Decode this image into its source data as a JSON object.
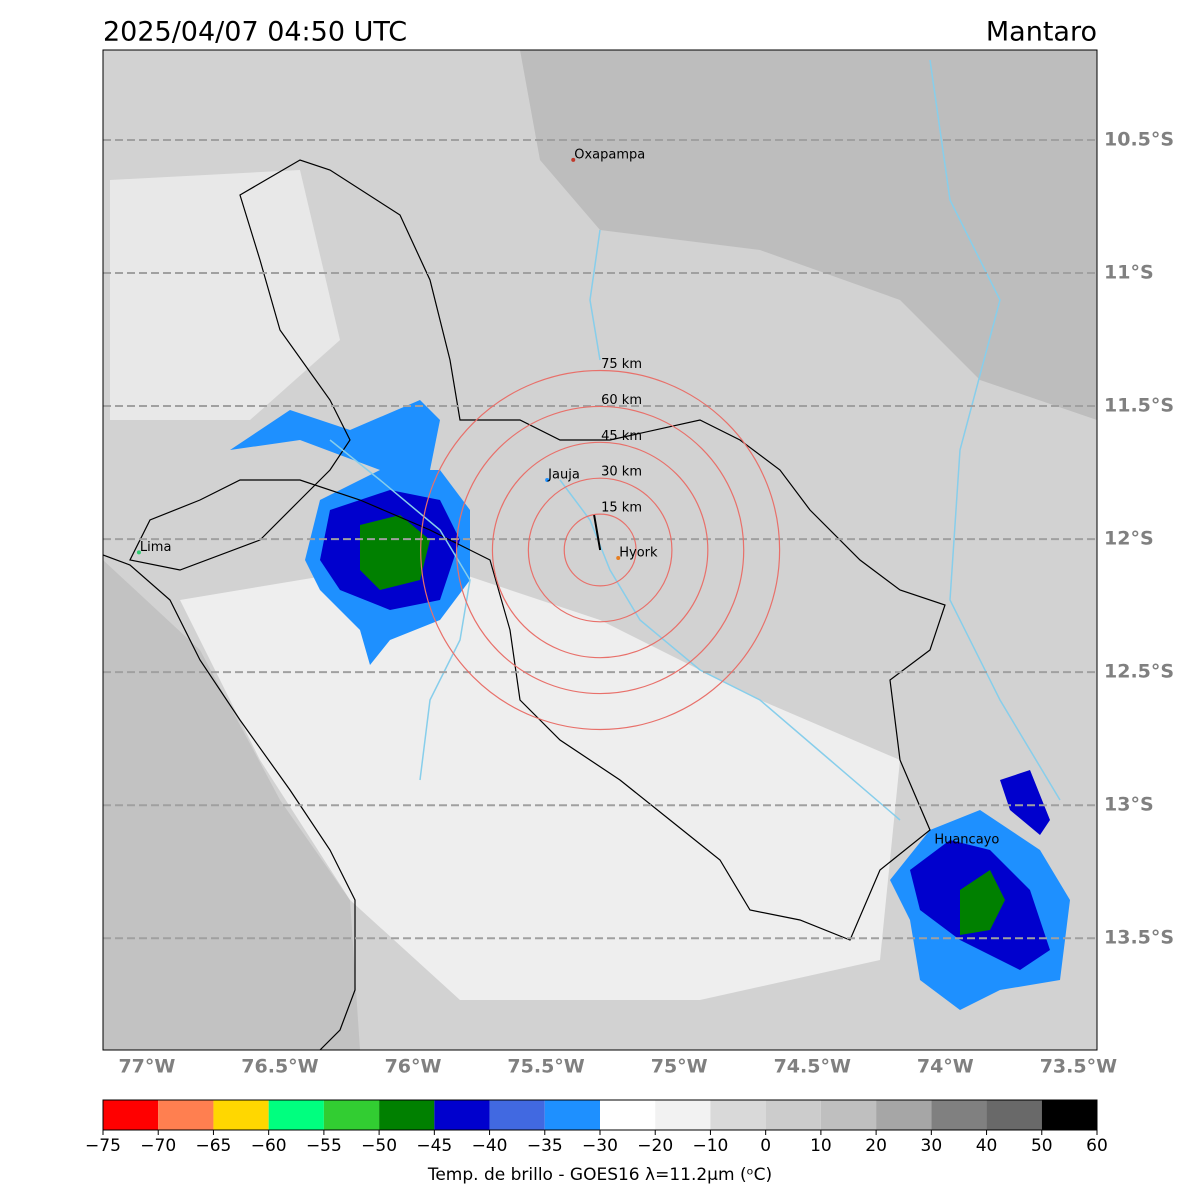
{
  "header": {
    "title": "2025/04/07 04:50 UTC",
    "region": "Mantaro"
  },
  "map": {
    "xlim": [
      -77.165,
      -73.43
    ],
    "ylim": [
      -13.92,
      -10.162
    ],
    "lat_ticks": [
      {
        "value": -10.5,
        "label": "10.5°S"
      },
      {
        "value": -11,
        "label": "11°S"
      },
      {
        "value": -11.5,
        "label": "11.5°S"
      },
      {
        "value": -12,
        "label": "12°S"
      },
      {
        "value": -12.5,
        "label": "12.5°S"
      },
      {
        "value": -13,
        "label": "13°S"
      },
      {
        "value": -13.5,
        "label": "13.5°S"
      }
    ],
    "lon_ticks": [
      {
        "value": -77,
        "label": "77°W"
      },
      {
        "value": -76.5,
        "label": "76.5°W"
      },
      {
        "value": -76,
        "label": "76°W"
      },
      {
        "value": -75.5,
        "label": "75.5°W"
      },
      {
        "value": -75,
        "label": "75°W"
      },
      {
        "value": -74.5,
        "label": "74.5°W"
      },
      {
        "value": -74,
        "label": "74°W"
      },
      {
        "value": -73.5,
        "label": "73.5°W"
      }
    ],
    "cities": [
      {
        "name": "Oxapampa",
        "lon": -75.398,
        "lat": -10.575,
        "color": "#c0392b"
      },
      {
        "name": "Jauja",
        "lon": -75.496,
        "lat": -11.778,
        "color": "#1e90ff"
      },
      {
        "name": "Hyork",
        "lon": -75.229,
        "lat": -12.071,
        "color": "#e67e22"
      },
      {
        "name": "Lima",
        "lon": -77.03,
        "lat": -12.05,
        "color": "#2ecc71"
      },
      {
        "name": "Huancayo",
        "lon": -74.045,
        "lat": -13.15,
        "color": "#1e90ff"
      }
    ],
    "rings_center": [
      -75.297,
      -12.041
    ],
    "rings": [
      {
        "value": 15,
        "label": "15 km"
      },
      {
        "value": 30,
        "label": "30 km"
      },
      {
        "value": 45,
        "label": "45 km"
      },
      {
        "value": 60,
        "label": "60 km"
      },
      {
        "value": 75,
        "label": "75 km"
      }
    ],
    "ring_color": "#e8706a"
  },
  "colorbar": {
    "label": "Temp. de brillo - GOES16 λ=11.2μm (ᵒC)",
    "ticks": [
      {
        "value": -75,
        "label": "−75"
      },
      {
        "value": -70,
        "label": "−70"
      },
      {
        "value": -65,
        "label": "−65"
      },
      {
        "value": -60,
        "label": "−60"
      },
      {
        "value": -55,
        "label": "−55"
      },
      {
        "value": -50,
        "label": "−50"
      },
      {
        "value": -45,
        "label": "−45"
      },
      {
        "value": -40,
        "label": "−40"
      },
      {
        "value": -35,
        "label": "−35"
      },
      {
        "value": -30,
        "label": "−30"
      },
      {
        "value": -20,
        "label": "−20"
      },
      {
        "value": -10,
        "label": "−10"
      },
      0,
      10,
      20,
      30,
      40,
      50,
      60
    ],
    "colors": [
      "#ff0000",
      "#ff7f50",
      "#ffd700",
      "#00ff7f",
      "#32cd32",
      "#008000",
      "#0000cd",
      "#4169e1",
      "#1e90ff",
      "#ffffff",
      "#f2f2f2",
      "#d9d9d9",
      "#cccccc",
      "#bfbfbf",
      "#a6a6a6",
      "#808080",
      "#696969",
      "#000000"
    ]
  }
}
